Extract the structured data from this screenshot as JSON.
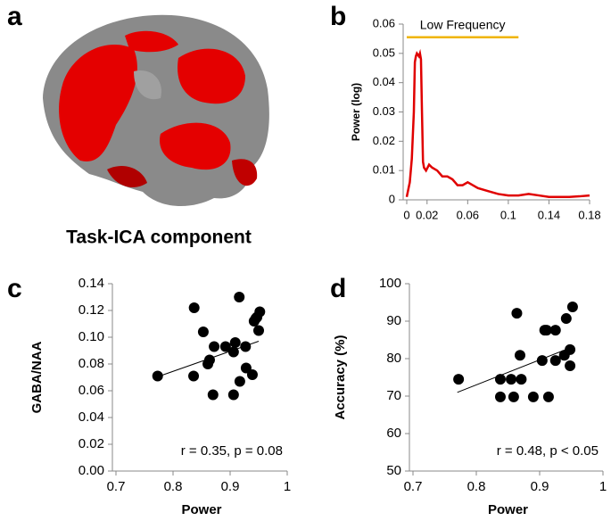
{
  "image_panel": {
    "label": "a",
    "caption": "Task-ICA component"
  },
  "chart_data": [
    {
      "type": "line",
      "label": "b",
      "y_label": "Power (log)",
      "color": "#e00000",
      "xlim": [
        0,
        0.18
      ],
      "xticks": [
        0,
        0.02,
        0.06,
        0.1,
        0.14,
        0.18
      ],
      "ylim": [
        0,
        0.06
      ],
      "yticks": [
        0,
        0.01,
        0.02,
        0.03,
        0.04,
        0.05,
        0.06
      ],
      "band": {
        "text": "Low Frequency",
        "xlim": [
          0,
          0.11
        ],
        "y": 0.0555,
        "color": "#f0b400"
      },
      "x": [
        0,
        0.003,
        0.005,
        0.007,
        0.008,
        0.009,
        0.01,
        0.012,
        0.013,
        0.014,
        0.015,
        0.016,
        0.017,
        0.019,
        0.022,
        0.025,
        0.03,
        0.035,
        0.04,
        0.045,
        0.05,
        0.055,
        0.06,
        0.065,
        0.07,
        0.08,
        0.09,
        0.1,
        0.11,
        0.12,
        0.13,
        0.14,
        0.15,
        0.16,
        0.17,
        0.18
      ],
      "values": [
        0.001,
        0.006,
        0.014,
        0.03,
        0.047,
        0.049,
        0.05,
        0.049,
        0.05,
        0.048,
        0.03,
        0.013,
        0.011,
        0.01,
        0.012,
        0.011,
        0.01,
        0.008,
        0.008,
        0.007,
        0.005,
        0.005,
        0.006,
        0.005,
        0.004,
        0.003,
        0.002,
        0.0015,
        0.0015,
        0.002,
        0.0015,
        0.001,
        0.001,
        0.001,
        0.0012,
        0.0015
      ]
    },
    {
      "type": "scatter",
      "label": "c",
      "x_label": "Power",
      "y_label": "GABA/NAA",
      "color": "#000000",
      "annotation": "r = 0.35, p = 0.08",
      "xlim": [
        0.7,
        1
      ],
      "xticks": [
        0.7,
        0.8,
        0.9,
        1
      ],
      "ylim": [
        0,
        0.14
      ],
      "yticks": [
        {
          "value": 0,
          "label": "0.00"
        },
        0.02,
        0.04,
        0.06,
        0.08,
        {
          "value": 0.1,
          "label": "0.10"
        },
        0.12,
        0.14
      ],
      "x": [
        0.773,
        0.837,
        0.853,
        0.836,
        0.861,
        0.864,
        0.872,
        0.87,
        0.892,
        0.909,
        0.916,
        0.906,
        0.927,
        0.928,
        0.917,
        0.906,
        0.939,
        0.942,
        0.947,
        0.952,
        0.95,
        0.945
      ],
      "values": [
        0.071,
        0.122,
        0.104,
        0.071,
        0.08,
        0.083,
        0.093,
        0.057,
        0.093,
        0.096,
        0.13,
        0.089,
        0.093,
        0.077,
        0.067,
        0.057,
        0.072,
        0.112,
        0.115,
        0.119,
        0.105,
        0.114
      ],
      "trend": {
        "x": [
          0.77,
          0.95
        ],
        "values": [
          0.07,
          0.097
        ]
      }
    },
    {
      "type": "scatter",
      "label": "d",
      "x_label": "Power",
      "y_label": "Accuracy (%)",
      "color": "#000000",
      "annotation": "r = 0.48, p < 0.05",
      "xlim": [
        0.7,
        1
      ],
      "xticks": [
        0.7,
        0.8,
        0.9,
        1
      ],
      "ylim": [
        50,
        100
      ],
      "yticks": [
        50,
        60,
        70,
        80,
        90,
        100
      ],
      "x": [
        0.772,
        0.838,
        0.838,
        0.855,
        0.859,
        0.864,
        0.869,
        0.871,
        0.89,
        0.904,
        0.908,
        0.914,
        0.925,
        0.925,
        0.939,
        0.942,
        0.948,
        0.948,
        0.952,
        0.911
      ],
      "values": [
        74.5,
        69.8,
        74.5,
        74.5,
        69.8,
        92.1,
        80.9,
        74.5,
        69.8,
        79.5,
        87.6,
        69.8,
        87.6,
        79.5,
        80.9,
        90.7,
        78.1,
        82.4,
        93.8,
        87.6
      ],
      "trend": {
        "x": [
          0.77,
          0.95
        ],
        "values": [
          71,
          83
        ]
      }
    }
  ]
}
